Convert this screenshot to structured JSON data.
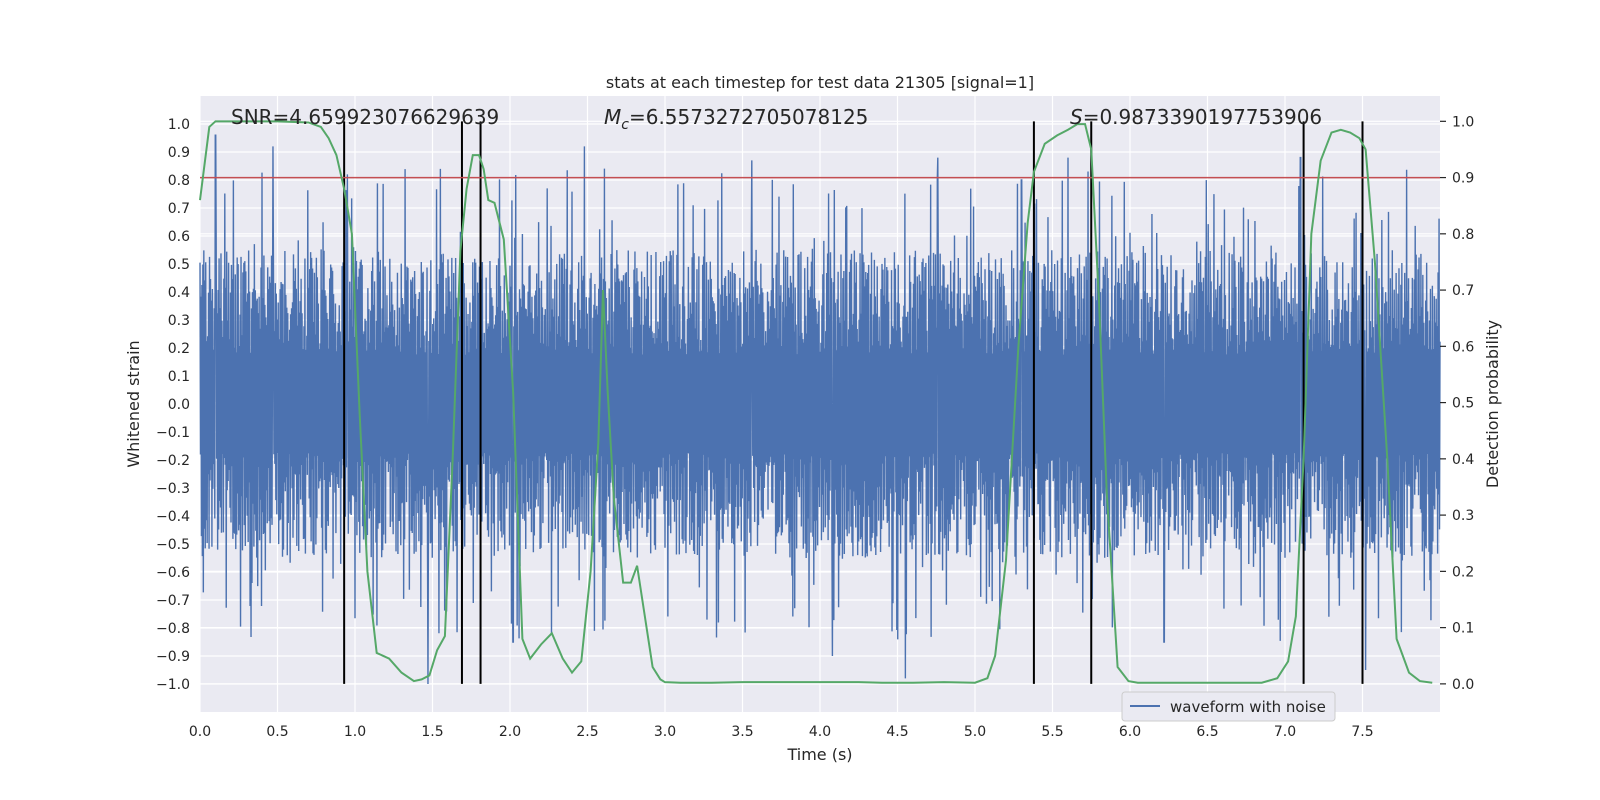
{
  "chart_data": {
    "type": "line",
    "title": "stats at each timestep for test data 21305 [signal=1]",
    "xlabel": "Time (s)",
    "ylabel_left": "Whitened strain",
    "ylabel_right": "Detection probability",
    "xlim": [
      0.0,
      8.0
    ],
    "ylim_left": [
      -1.1,
      1.1
    ],
    "ylim_right": [
      -0.05,
      1.045
    ],
    "x_ticks": [
      "0.0",
      "0.5",
      "1.0",
      "1.5",
      "2.0",
      "2.5",
      "3.0",
      "3.5",
      "4.0",
      "4.5",
      "5.0",
      "5.5",
      "6.0",
      "6.5",
      "7.0",
      "7.5"
    ],
    "y_ticks_left": [
      "−1.0",
      "−0.9",
      "−0.8",
      "−0.7",
      "−0.6",
      "−0.5",
      "−0.4",
      "−0.3",
      "−0.2",
      "−0.1",
      "0.0",
      "0.1",
      "0.2",
      "0.3",
      "0.4",
      "0.5",
      "0.6",
      "0.7",
      "0.8",
      "0.9",
      "1.0"
    ],
    "y_ticks_right": [
      "0.0",
      "0.1",
      "0.2",
      "0.3",
      "0.4",
      "0.5",
      "0.6",
      "0.7",
      "0.8",
      "0.9",
      "1.0"
    ],
    "annotations": {
      "snr": "SNR=4.659923076629639",
      "mc_symbol": "M",
      "mc_sub": "c",
      "mc_value": "=6.5573272705078125",
      "s_symbol": "S",
      "s_value": "=0.9873390197753906"
    },
    "legend": {
      "label": "waveform with noise",
      "position": "lower-right"
    },
    "threshold": 0.9,
    "vertical_lines": [
      0.93,
      1.69,
      1.81,
      5.38,
      5.75,
      7.12,
      7.5
    ],
    "waveform": {
      "name": "waveform with noise",
      "x_range": [
        0.0,
        8.0
      ],
      "typical_amplitude": 0.5,
      "peaks_upper": [
        [
          0.1,
          0.96
        ],
        [
          0.47,
          0.92
        ],
        [
          0.95,
          0.82
        ],
        [
          2.48,
          0.92
        ],
        [
          3.56,
          0.87
        ],
        [
          4.76,
          0.88
        ],
        [
          5.3,
          0.8
        ],
        [
          5.6,
          0.88
        ],
        [
          7.1,
          0.88
        ]
      ],
      "peaks_lower": [
        [
          1.47,
          -1.0
        ],
        [
          4.55,
          -0.98
        ],
        [
          4.08,
          -0.9
        ],
        [
          7.52,
          -0.95
        ],
        [
          6.22,
          -0.85
        ],
        [
          2.02,
          -0.85
        ]
      ]
    },
    "series": [
      {
        "name": "Detection probability",
        "axis": "right",
        "x": [
          0.0,
          0.06,
          0.1,
          0.2,
          0.3,
          0.5,
          0.7,
          0.78,
          0.83,
          0.88,
          0.93,
          0.98,
          1.03,
          1.08,
          1.14,
          1.22,
          1.3,
          1.38,
          1.43,
          1.48,
          1.53,
          1.58,
          1.63,
          1.68,
          1.72,
          1.76,
          1.8,
          1.83,
          1.86,
          1.9,
          1.96,
          2.02,
          2.08,
          2.13,
          2.2,
          2.27,
          2.34,
          2.4,
          2.46,
          2.52,
          2.57,
          2.6,
          2.63,
          2.67,
          2.73,
          2.78,
          2.82,
          2.87,
          2.92,
          2.97,
          3.0,
          3.1,
          3.3,
          3.5,
          3.7,
          3.9,
          4.1,
          4.25,
          4.4,
          4.6,
          4.8,
          5.0,
          5.08,
          5.13,
          5.2,
          5.28,
          5.34,
          5.38,
          5.45,
          5.53,
          5.6,
          5.66,
          5.71,
          5.75,
          5.8,
          5.85,
          5.92,
          5.99,
          6.05,
          6.1,
          6.3,
          6.5,
          6.7,
          6.85,
          6.95,
          7.02,
          7.07,
          7.12,
          7.17,
          7.23,
          7.3,
          7.36,
          7.42,
          7.48,
          7.52,
          7.58,
          7.66,
          7.72,
          7.8,
          7.87,
          7.95
        ],
        "values": [
          0.86,
          0.99,
          1.0,
          1.0,
          1.0,
          1.0,
          0.998,
          0.99,
          0.97,
          0.94,
          0.88,
          0.8,
          0.48,
          0.2,
          0.055,
          0.045,
          0.02,
          0.005,
          0.008,
          0.015,
          0.06,
          0.085,
          0.4,
          0.77,
          0.88,
          0.94,
          0.94,
          0.915,
          0.86,
          0.855,
          0.79,
          0.52,
          0.08,
          0.045,
          0.07,
          0.09,
          0.045,
          0.02,
          0.04,
          0.2,
          0.43,
          0.7,
          0.52,
          0.33,
          0.18,
          0.18,
          0.21,
          0.12,
          0.03,
          0.008,
          0.003,
          0.002,
          0.002,
          0.003,
          0.003,
          0.003,
          0.003,
          0.003,
          0.002,
          0.002,
          0.003,
          0.002,
          0.01,
          0.05,
          0.22,
          0.6,
          0.82,
          0.91,
          0.96,
          0.975,
          0.985,
          0.995,
          0.995,
          0.95,
          0.68,
          0.34,
          0.03,
          0.005,
          0.002,
          0.002,
          0.002,
          0.002,
          0.002,
          0.002,
          0.01,
          0.04,
          0.12,
          0.4,
          0.8,
          0.93,
          0.98,
          0.985,
          0.98,
          0.97,
          0.95,
          0.75,
          0.4,
          0.08,
          0.02,
          0.005,
          0.002
        ]
      }
    ],
    "colors": {
      "background": "#eaeaf2",
      "grid": "#ffffff",
      "waveform": "#4c72b0",
      "probability": "#55a868",
      "threshold": "#c44e52",
      "vlines": "#000000"
    }
  }
}
